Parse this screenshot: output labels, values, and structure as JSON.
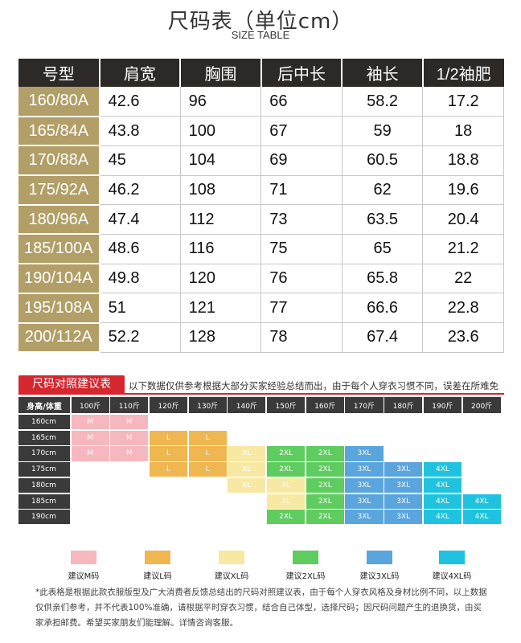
{
  "header": {
    "title": "尺码表（单位cm）",
    "subtitle": "SIZE TABLE"
  },
  "size_table": {
    "columns": [
      "号型",
      "肩宽",
      "胸围",
      "后中长",
      "袖长",
      "1/2袖肥"
    ],
    "rows": [
      [
        "160/80A",
        "42.6",
        "96",
        "66",
        "58.2",
        "17.2"
      ],
      [
        "165/84A",
        "43.8",
        "100",
        "67",
        "59",
        "18"
      ],
      [
        "170/88A",
        "45",
        "104",
        "69",
        "60.5",
        "18.8"
      ],
      [
        "175/92A",
        "46.2",
        "108",
        "71",
        "62",
        "19.6"
      ],
      [
        "180/96A",
        "47.4",
        "112",
        "73",
        "63.5",
        "20.4"
      ],
      [
        "185/100A",
        "48.6",
        "116",
        "75",
        "65",
        "21.2"
      ],
      [
        "190/104A",
        "49.8",
        "120",
        "76",
        "65.8",
        "22"
      ],
      [
        "195/108A",
        "51",
        "121",
        "77",
        "66.6",
        "22.8"
      ],
      [
        "200/112A",
        "52.2",
        "128",
        "78",
        "67.4",
        "23.6"
      ]
    ]
  },
  "recommendation": {
    "badge": "尺码对照建议表",
    "note": "以下数据仅供参考根据大部分买家经验总结而出，由于每个人穿衣习惯不同，误差在所难免",
    "corner": "身高/体重",
    "weights": [
      "100斤",
      "110斤",
      "120斤",
      "130斤",
      "140斤",
      "150斤",
      "160斤",
      "170斤",
      "180斤",
      "190斤",
      "200斤"
    ],
    "heights": [
      "160cm",
      "165cm",
      "170cm",
      "175cm",
      "180cm",
      "185cm",
      "190cm"
    ],
    "cells": [
      [
        "M",
        "M",
        "",
        "",
        "",
        "",
        "",
        "",
        "",
        "",
        ""
      ],
      [
        "M",
        "M",
        "L",
        "L",
        "",
        "",
        "",
        "",
        "",
        "",
        ""
      ],
      [
        "M",
        "M",
        "L",
        "L",
        "XL",
        "2XL",
        "2XL",
        "3XL",
        "",
        "",
        ""
      ],
      [
        "",
        "",
        "L",
        "L",
        "XL",
        "2XL",
        "2XL",
        "3XL",
        "3XL",
        "4XL",
        ""
      ],
      [
        "",
        "",
        "",
        "",
        "XL",
        "XL",
        "2XL",
        "3XL",
        "3XL",
        "4XL",
        ""
      ],
      [
        "",
        "",
        "",
        "",
        "",
        "XL",
        "2XL",
        "3XL",
        "3XL",
        "4XL",
        "4XL"
      ],
      [
        "",
        "",
        "",
        "",
        "",
        "2XL",
        "2XL",
        "3XL",
        "3XL",
        "4XL",
        "4XL"
      ]
    ],
    "colors": {
      "M": "#f7b7be",
      "L": "#f0b650",
      "XL": "#f7e9a3",
      "2XL": "#5ecc5e",
      "3XL": "#5aa5de",
      "4XL": "#1fc3df"
    }
  },
  "legend": [
    {
      "key": "M",
      "label": "建议M码"
    },
    {
      "key": "L",
      "label": "建议L码"
    },
    {
      "key": "XL",
      "label": "建议XL码"
    },
    {
      "key": "2XL",
      "label": "建议2XL码"
    },
    {
      "key": "3XL",
      "label": "建议3XL码"
    },
    {
      "key": "4XL",
      "label": "建议4XL码"
    }
  ],
  "footnote": "*此表格是根据此款衣服版型及广大消费者反馈总结出的尺码对照建议表，由于每个人穿衣风格及身材比例不同，以上数据仅供亲们参考，并不代表100%准确，请根据平时穿衣习惯，结合自己体型，选择尺码；因尺码问题产生的退换货，由买家承担邮费。希望买家朋友们能理解。详情咨询客服。"
}
